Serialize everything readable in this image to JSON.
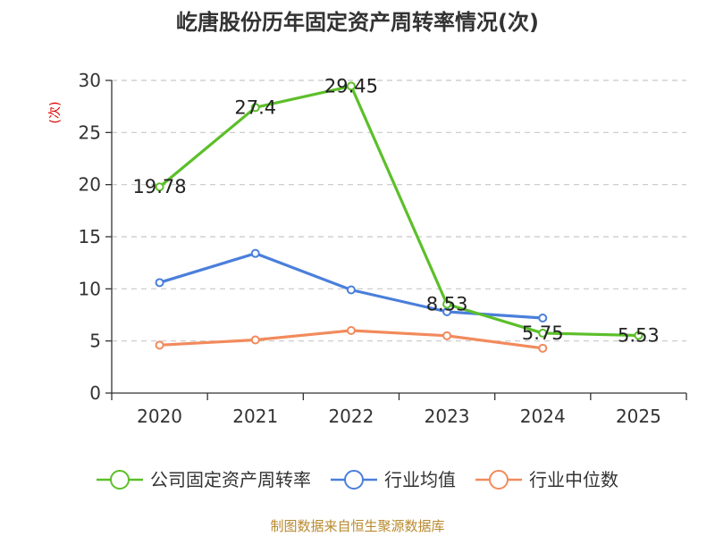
{
  "chart_data": {
    "type": "line",
    "title": "屹唐股份历年固定资产周转率情况(次)",
    "ylabel": "(次)",
    "xlabel": "",
    "categories": [
      "2020",
      "2021",
      "2022",
      "2023",
      "2024",
      "2025"
    ],
    "ylim": [
      0,
      30
    ],
    "yticks": [
      0,
      5,
      10,
      15,
      20,
      25,
      30
    ],
    "grid": true,
    "legend_position": "bottom",
    "series": [
      {
        "name": "公司固定资产周转率",
        "color": "#5cbf2a",
        "values": [
          19.78,
          27.4,
          29.45,
          8.53,
          5.75,
          5.53
        ],
        "labels": [
          "19.78",
          "27.4",
          "29.45",
          "8.53",
          "5.75",
          "5.53"
        ]
      },
      {
        "name": "行业均值",
        "color": "#4a7fdb",
        "values": [
          10.6,
          13.4,
          9.9,
          7.8,
          7.2,
          null
        ]
      },
      {
        "name": "行业中位数",
        "color": "#f28a5c",
        "values": [
          4.6,
          5.1,
          6.0,
          5.5,
          4.3,
          null
        ]
      }
    ],
    "source": "制图数据来自恒生聚源数据库"
  }
}
